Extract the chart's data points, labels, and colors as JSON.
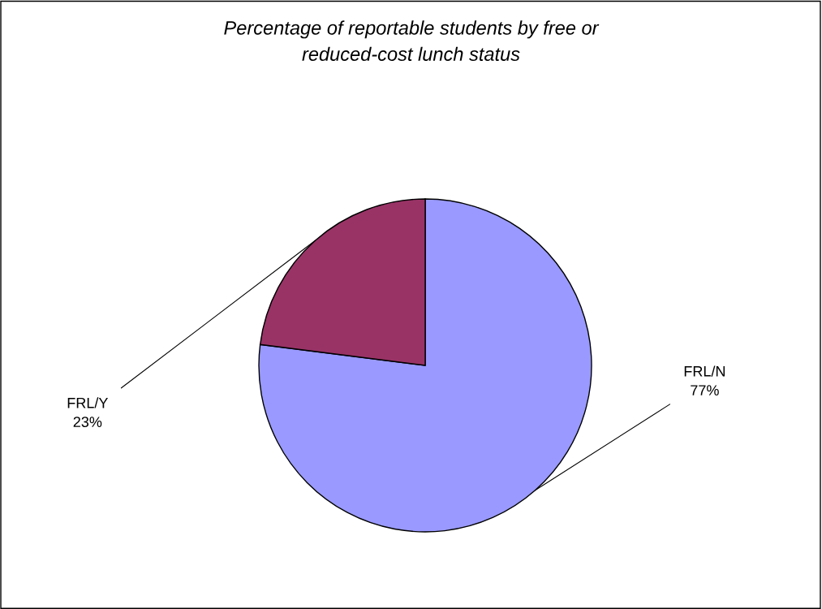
{
  "chart_data": {
    "type": "pie",
    "title": "Percentage of reportable students by free or\nreduced-cost lunch status",
    "categories": [
      "FRL/N",
      "FRL/Y"
    ],
    "values": [
      77,
      23
    ],
    "value_labels": [
      "77%",
      "23%"
    ],
    "colors": [
      "#9999ff",
      "#993366"
    ],
    "legend": false
  }
}
